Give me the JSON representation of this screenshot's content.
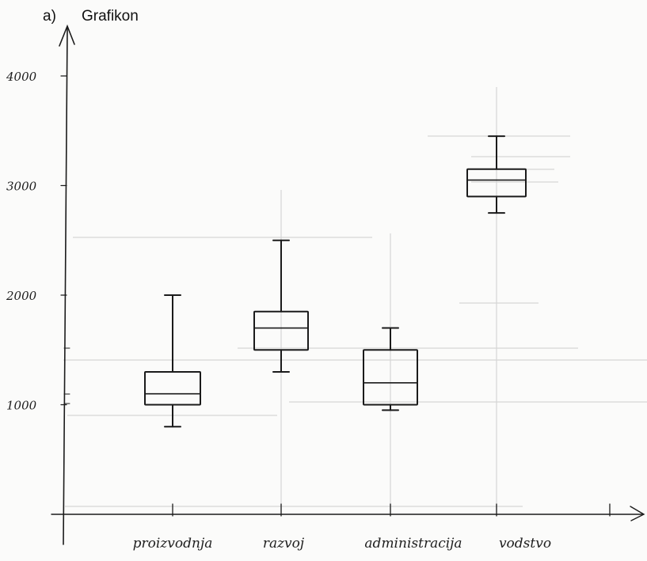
{
  "header": {
    "letter": "a)",
    "title": "Grafikon"
  },
  "chart_data": {
    "type": "box",
    "title": "Grafikon",
    "xlabel": "",
    "ylabel": "",
    "ylim": [
      0,
      4400
    ],
    "yticks": [
      1000,
      2000,
      3000,
      4000
    ],
    "ytick_labels": [
      "1000",
      "2000",
      "3000",
      "4000"
    ],
    "categories": [
      "proizvodnja",
      "razvoj",
      "administracija",
      "vodstvo"
    ],
    "boxes": [
      {
        "category": "proizvodnja",
        "min": 800,
        "q1": 1000,
        "median": 1100,
        "q3": 1300,
        "max": 2000
      },
      {
        "category": "razvoj",
        "min": 1300,
        "q1": 1500,
        "median": 1700,
        "q3": 1850,
        "max": 2500
      },
      {
        "category": "administracija",
        "min": 950,
        "q1": 1000,
        "median": 1200,
        "q3": 1500,
        "max": 1700
      },
      {
        "category": "vodstvo",
        "min": 2750,
        "q1": 2900,
        "median": 3050,
        "q3": 3150,
        "max": 3450
      }
    ],
    "grid": false,
    "legend": "none",
    "style": "hand-drawn pencil sketch on paper",
    "colors": {
      "ink": "#1b1b1b",
      "pencil": "#d5d5d5",
      "paper": "#fbfbfa"
    }
  }
}
